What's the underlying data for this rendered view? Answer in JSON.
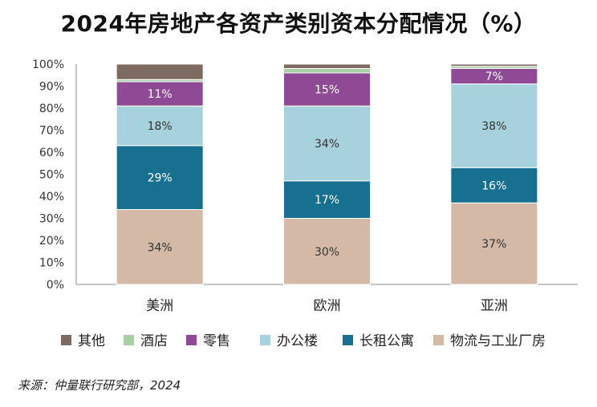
{
  "title": "2024年房地产各资产类别资本分配情况（%）",
  "source": "来源：仲量联行研究部，2024",
  "chart_data": {
    "type": "bar",
    "stacked": true,
    "categories": [
      "美洲",
      "欧洲",
      "亚洲"
    ],
    "ylim": [
      0,
      100
    ],
    "y_ticks": [
      "0%",
      "10%",
      "20%",
      "30%",
      "40%",
      "50%",
      "60%",
      "70%",
      "80%",
      "90%",
      "100%"
    ],
    "legend_position": "bottom",
    "series": [
      {
        "name": "物流与工业厂房",
        "color": "#d4baa6",
        "values": [
          34,
          30,
          37
        ],
        "labels": [
          "34%",
          "30%",
          "37%"
        ],
        "label_color": "#333333"
      },
      {
        "name": "长租公寓",
        "color": "#17708f",
        "values": [
          29,
          17,
          16
        ],
        "labels": [
          "29%",
          "17%",
          "16%"
        ],
        "label_color": "#ffffff"
      },
      {
        "name": "办公楼",
        "color": "#a7d2dd",
        "values": [
          18,
          34,
          38
        ],
        "labels": [
          "18%",
          "34%",
          "38%"
        ],
        "label_color": "#333333"
      },
      {
        "name": "零售",
        "color": "#8e4a94",
        "values": [
          11,
          15,
          7
        ],
        "labels": [
          "11%",
          "15%",
          "7%"
        ],
        "label_color": "#ffffff"
      },
      {
        "name": "酒店",
        "color": "#a9cfa7",
        "values": [
          1,
          2,
          1
        ],
        "labels": [
          "",
          "",
          ""
        ],
        "label_color": "#333333"
      },
      {
        "name": "其他",
        "color": "#7d6b61",
        "values": [
          7,
          2,
          1
        ],
        "labels": [
          "",
          "",
          ""
        ],
        "label_color": "#ffffff"
      }
    ],
    "legend_order": [
      "其他",
      "酒店",
      "零售",
      "办公楼",
      "长租公寓",
      "物流与工业厂房"
    ]
  }
}
